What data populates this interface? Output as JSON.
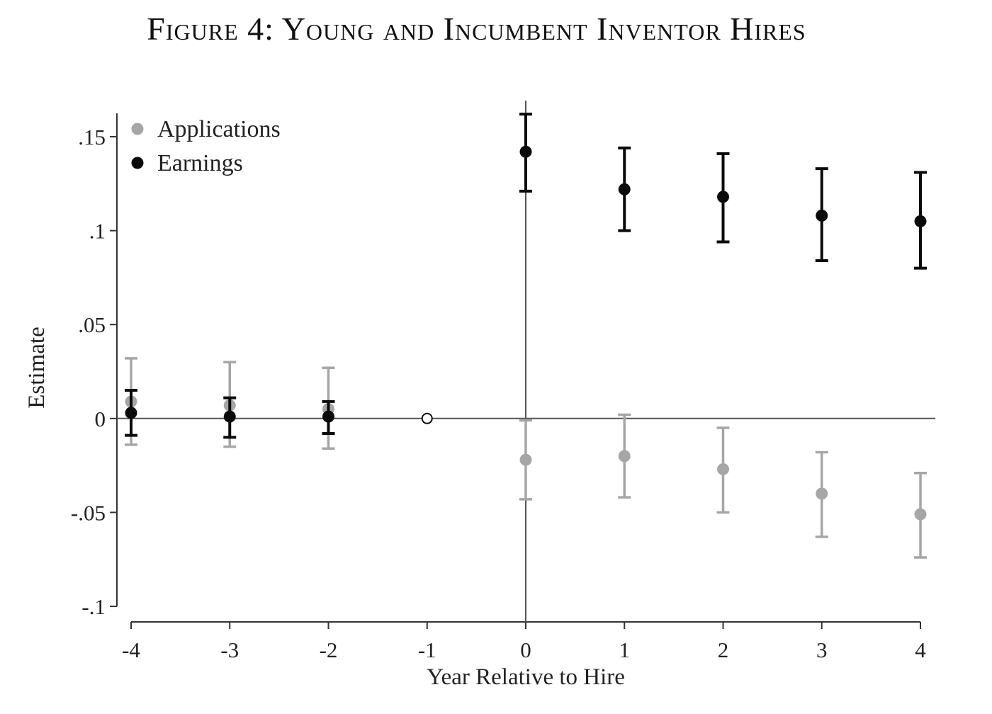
{
  "figure": {
    "title": "Figure 4: Young and Incumbent Inventor Hires"
  },
  "colors": {
    "applications": "#a6a6a6",
    "earnings": "#0a0a0a",
    "axis": "#333333"
  },
  "chart_data": {
    "type": "scatter",
    "title": "Figure 4: Young and Incumbent Inventor Hires",
    "xlabel": "Year Relative to Hire",
    "ylabel": "Estimate",
    "xlim": [
      -4,
      4
    ],
    "ylim": [
      -0.1,
      0.15
    ],
    "xticks": [
      {
        "value": -4,
        "label": "-4"
      },
      {
        "value": -3,
        "label": "-3"
      },
      {
        "value": -2,
        "label": "-2"
      },
      {
        "value": -1,
        "label": "-1"
      },
      {
        "value": 0,
        "label": "0"
      },
      {
        "value": 1,
        "label": "1"
      },
      {
        "value": 2,
        "label": "2"
      },
      {
        "value": 3,
        "label": "3"
      },
      {
        "value": 4,
        "label": "4"
      }
    ],
    "yticks": [
      {
        "value": 0.15,
        "label": ".15"
      },
      {
        "value": 0.1,
        "label": ".1"
      },
      {
        "value": 0.05,
        "label": ".05"
      },
      {
        "value": 0,
        "label": "0"
      },
      {
        "value": -0.05,
        "label": "-.05"
      },
      {
        "value": -0.1,
        "label": "-.1"
      }
    ],
    "reference_lines": {
      "x": 0,
      "y": 0
    },
    "omitted_point": {
      "x": -1,
      "y": 0
    },
    "legend": {
      "placement": "top-left"
    },
    "grid": false,
    "series": [
      {
        "name": "Applications",
        "color": "#a6a6a6",
        "points": [
          {
            "x": -4,
            "y": 0.009,
            "lo": -0.014,
            "hi": 0.032
          },
          {
            "x": -3,
            "y": 0.007,
            "lo": -0.015,
            "hi": 0.03
          },
          {
            "x": -2,
            "y": 0.005,
            "lo": -0.016,
            "hi": 0.027
          },
          {
            "x": 0,
            "y": -0.022,
            "lo": -0.043,
            "hi": -0.001
          },
          {
            "x": 1,
            "y": -0.02,
            "lo": -0.042,
            "hi": 0.002
          },
          {
            "x": 2,
            "y": -0.027,
            "lo": -0.05,
            "hi": -0.005
          },
          {
            "x": 3,
            "y": -0.04,
            "lo": -0.063,
            "hi": -0.018
          },
          {
            "x": 4,
            "y": -0.051,
            "lo": -0.074,
            "hi": -0.029
          }
        ]
      },
      {
        "name": "Earnings",
        "color": "#0a0a0a",
        "points": [
          {
            "x": -4,
            "y": 0.003,
            "lo": -0.009,
            "hi": 0.015
          },
          {
            "x": -3,
            "y": 0.001,
            "lo": -0.01,
            "hi": 0.011
          },
          {
            "x": -2,
            "y": 0.001,
            "lo": -0.008,
            "hi": 0.009
          },
          {
            "x": 0,
            "y": 0.142,
            "lo": 0.121,
            "hi": 0.162
          },
          {
            "x": 1,
            "y": 0.122,
            "lo": 0.1,
            "hi": 0.144
          },
          {
            "x": 2,
            "y": 0.118,
            "lo": 0.094,
            "hi": 0.141
          },
          {
            "x": 3,
            "y": 0.108,
            "lo": 0.084,
            "hi": 0.133
          },
          {
            "x": 4,
            "y": 0.105,
            "lo": 0.08,
            "hi": 0.131
          }
        ]
      }
    ]
  }
}
